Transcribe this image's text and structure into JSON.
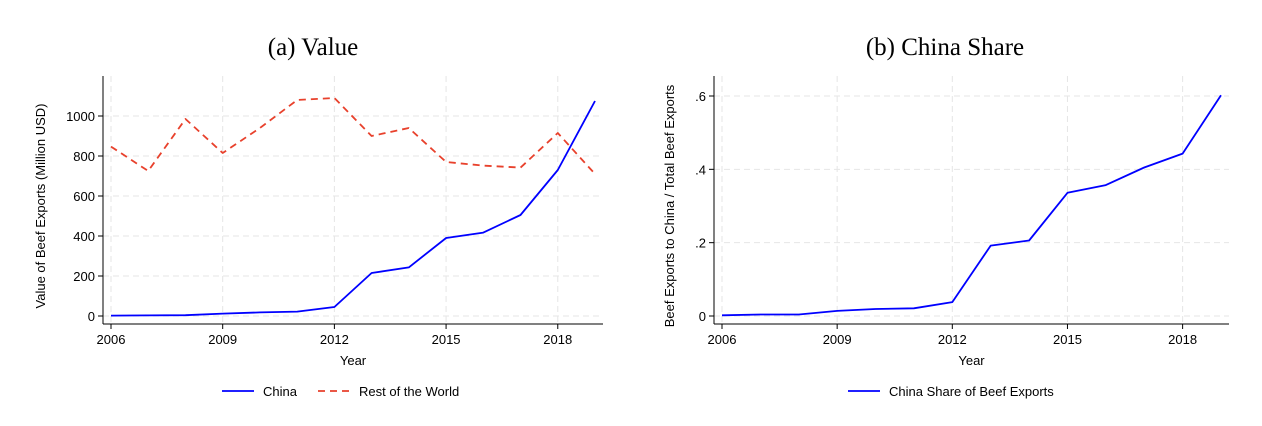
{
  "chart_data": [
    {
      "type": "line",
      "title": "(a) Value",
      "xlabel": "Year",
      "ylabel": "Value of Beef Exports (Million USD)",
      "xlim": [
        2006,
        2019
      ],
      "ylim": [
        0,
        1100
      ],
      "xticks": [
        2006,
        2009,
        2012,
        2015,
        2018
      ],
      "xtick_labels": [
        "2006",
        "2009",
        "2012",
        "2015",
        "2018"
      ],
      "yticks": [
        0,
        200,
        400,
        600,
        800,
        1000
      ],
      "ytick_labels": [
        "0",
        "200",
        "400",
        "600",
        "800",
        "1000"
      ],
      "grid": true,
      "legend_position": "bottom",
      "x": [
        2006,
        2007,
        2008,
        2009,
        2010,
        2011,
        2012,
        2013,
        2014,
        2015,
        2016,
        2017,
        2018,
        2019
      ],
      "series": [
        {
          "name": "China",
          "color": "#0000ff",
          "style": "solid",
          "values": [
            2,
            3,
            4,
            12,
            18,
            22,
            45,
            215,
            243,
            390,
            417,
            505,
            730,
            1075
          ]
        },
        {
          "name": "Rest of the World",
          "color": "#e8412c",
          "style": "dashed",
          "values": [
            847,
            725,
            985,
            815,
            940,
            1080,
            1090,
            900,
            940,
            770,
            752,
            742,
            915,
            710
          ]
        }
      ]
    },
    {
      "type": "line",
      "title": "(b) China Share",
      "xlabel": "Year",
      "ylabel": "Beef Exports to China / Total Beef Exports",
      "xlim": [
        2006,
        2019
      ],
      "ylim": [
        0,
        0.6
      ],
      "xticks": [
        2006,
        2009,
        2012,
        2015,
        2018
      ],
      "xtick_labels": [
        "2006",
        "2009",
        "2012",
        "2015",
        "2018"
      ],
      "yticks": [
        0,
        0.2,
        0.4,
        0.6
      ],
      "ytick_labels": [
        "0",
        ".2",
        ".4",
        ".6"
      ],
      "grid": true,
      "legend_position": "bottom",
      "x": [
        2006,
        2007,
        2008,
        2009,
        2010,
        2011,
        2012,
        2013,
        2014,
        2015,
        2016,
        2017,
        2018,
        2019
      ],
      "series": [
        {
          "name": "China Share of Beef Exports",
          "color": "#0000ff",
          "style": "solid",
          "values": [
            0.002,
            0.004,
            0.004,
            0.014,
            0.019,
            0.021,
            0.038,
            0.192,
            0.206,
            0.336,
            0.357,
            0.405,
            0.443,
            0.602
          ]
        }
      ]
    }
  ]
}
